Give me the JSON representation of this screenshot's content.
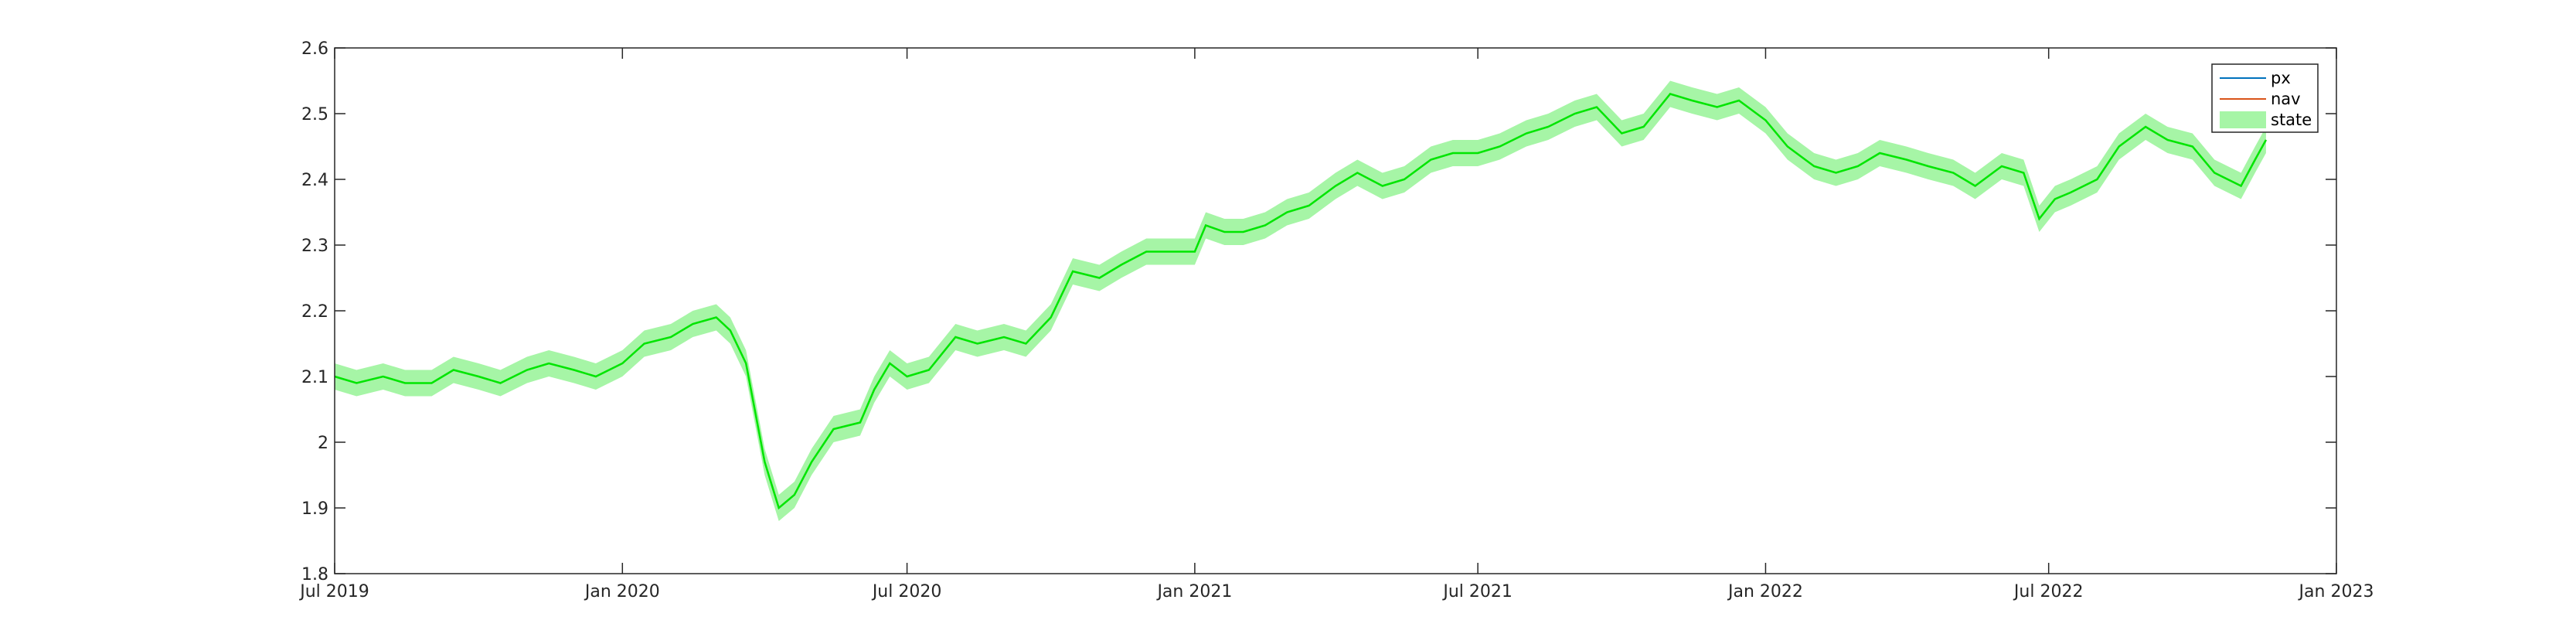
{
  "chart_data": {
    "type": "line",
    "title": "",
    "xlabel": "",
    "ylabel": "",
    "x_range": [
      "2019-07-01",
      "2023-01-01"
    ],
    "ylim": [
      1.8,
      2.6
    ],
    "xticks": [
      {
        "date": "2019-07-01",
        "label": "Jul 2019"
      },
      {
        "date": "2020-01-01",
        "label": "Jan 2020"
      },
      {
        "date": "2020-07-01",
        "label": "Jul 2020"
      },
      {
        "date": "2021-01-01",
        "label": "Jan 2021"
      },
      {
        "date": "2021-07-01",
        "label": "Jul 2021"
      },
      {
        "date": "2022-01-01",
        "label": "Jan 2022"
      },
      {
        "date": "2022-07-01",
        "label": "Jul 2022"
      },
      {
        "date": "2023-01-01",
        "label": "Jan 2023"
      }
    ],
    "yticks": [
      {
        "value": 1.8,
        "label": "1.8"
      },
      {
        "value": 1.9,
        "label": "1.9"
      },
      {
        "value": 2.0,
        "label": "2"
      },
      {
        "value": 2.1,
        "label": "2.1"
      },
      {
        "value": 2.2,
        "label": "2.2"
      },
      {
        "value": 2.3,
        "label": "2.3"
      },
      {
        "value": 2.4,
        "label": "2.4"
      },
      {
        "value": 2.5,
        "label": "2.5"
      },
      {
        "value": 2.6,
        "label": "2.6"
      }
    ],
    "grid": false,
    "legend_position": "top-right",
    "band_half_width": 0.02,
    "x": [
      "2019-07-01",
      "2019-07-15",
      "2019-08-01",
      "2019-08-15",
      "2019-09-01",
      "2019-09-15",
      "2019-10-01",
      "2019-10-15",
      "2019-11-01",
      "2019-11-15",
      "2019-12-01",
      "2019-12-15",
      "2020-01-01",
      "2020-01-15",
      "2020-02-01",
      "2020-02-15",
      "2020-03-01",
      "2020-03-10",
      "2020-03-20",
      "2020-04-01",
      "2020-04-10",
      "2020-04-20",
      "2020-05-01",
      "2020-05-15",
      "2020-06-01",
      "2020-06-10",
      "2020-06-20",
      "2020-07-01",
      "2020-07-15",
      "2020-08-01",
      "2020-08-15",
      "2020-09-01",
      "2020-09-15",
      "2020-10-01",
      "2020-10-15",
      "2020-11-01",
      "2020-11-15",
      "2020-12-01",
      "2020-12-15",
      "2021-01-01",
      "2021-01-08",
      "2021-01-20",
      "2021-02-01",
      "2021-02-15",
      "2021-03-01",
      "2021-03-15",
      "2021-04-01",
      "2021-04-15",
      "2021-05-01",
      "2021-05-15",
      "2021-06-01",
      "2021-06-15",
      "2021-07-01",
      "2021-07-15",
      "2021-08-01",
      "2021-08-15",
      "2021-09-01",
      "2021-09-15",
      "2021-10-01",
      "2021-10-15",
      "2021-11-01",
      "2021-11-15",
      "2021-12-01",
      "2021-12-15",
      "2022-01-01",
      "2022-01-15",
      "2022-02-01",
      "2022-02-15",
      "2022-03-01",
      "2022-03-15",
      "2022-04-01",
      "2022-04-15",
      "2022-05-01",
      "2022-05-15",
      "2022-06-01",
      "2022-06-15",
      "2022-06-25",
      "2022-07-05",
      "2022-07-15",
      "2022-08-01",
      "2022-08-15",
      "2022-09-01",
      "2022-09-15",
      "2022-10-01",
      "2022-10-15",
      "2022-11-01",
      "2022-11-10",
      "2022-11-17"
    ],
    "series": [
      {
        "name": "px",
        "color": "#0072BD",
        "kind": "line",
        "values": [
          2.1,
          2.09,
          2.1,
          2.09,
          2.09,
          2.11,
          2.1,
          2.09,
          2.11,
          2.12,
          2.11,
          2.1,
          2.12,
          2.15,
          2.16,
          2.18,
          2.19,
          2.17,
          2.12,
          1.97,
          1.9,
          1.92,
          1.97,
          2.02,
          2.03,
          2.08,
          2.12,
          2.1,
          2.11,
          2.16,
          2.15,
          2.16,
          2.15,
          2.19,
          2.26,
          2.25,
          2.27,
          2.29,
          2.29,
          2.29,
          2.33,
          2.32,
          2.32,
          2.33,
          2.35,
          2.36,
          2.39,
          2.41,
          2.39,
          2.4,
          2.43,
          2.44,
          2.44,
          2.45,
          2.47,
          2.48,
          2.5,
          2.51,
          2.47,
          2.48,
          2.53,
          2.52,
          2.51,
          2.52,
          2.49,
          2.45,
          2.42,
          2.41,
          2.42,
          2.44,
          2.43,
          2.42,
          2.41,
          2.39,
          2.42,
          2.41,
          2.34,
          2.37,
          2.38,
          2.4,
          2.45,
          2.48,
          2.46,
          2.45,
          2.41,
          2.39,
          2.43,
          2.46
        ]
      },
      {
        "name": "nav",
        "color": "#D95319",
        "kind": "line",
        "values": [
          2.1,
          2.09,
          2.1,
          2.09,
          2.09,
          2.11,
          2.1,
          2.09,
          2.11,
          2.12,
          2.11,
          2.1,
          2.12,
          2.15,
          2.16,
          2.18,
          2.19,
          2.17,
          2.12,
          1.97,
          1.9,
          1.92,
          1.97,
          2.02,
          2.03,
          2.08,
          2.12,
          2.1,
          2.11,
          2.16,
          2.15,
          2.16,
          2.15,
          2.19,
          2.26,
          2.25,
          2.27,
          2.29,
          2.29,
          2.29,
          2.33,
          2.32,
          2.32,
          2.33,
          2.35,
          2.36,
          2.39,
          2.41,
          2.39,
          2.4,
          2.43,
          2.44,
          2.44,
          2.45,
          2.47,
          2.48,
          2.5,
          2.51,
          2.47,
          2.48,
          2.53,
          2.52,
          2.51,
          2.52,
          2.49,
          2.45,
          2.42,
          2.41,
          2.42,
          2.44,
          2.43,
          2.42,
          2.41,
          2.39,
          2.42,
          2.41,
          2.34,
          2.37,
          2.38,
          2.4,
          2.45,
          2.48,
          2.46,
          2.45,
          2.41,
          2.39,
          2.43,
          2.46
        ]
      },
      {
        "name": "state",
        "color": "#00E600",
        "band_color": "#A6F5A6",
        "kind": "band",
        "values": [
          2.1,
          2.09,
          2.1,
          2.09,
          2.09,
          2.11,
          2.1,
          2.09,
          2.11,
          2.12,
          2.11,
          2.1,
          2.12,
          2.15,
          2.16,
          2.18,
          2.19,
          2.17,
          2.12,
          1.97,
          1.9,
          1.92,
          1.97,
          2.02,
          2.03,
          2.08,
          2.12,
          2.1,
          2.11,
          2.16,
          2.15,
          2.16,
          2.15,
          2.19,
          2.26,
          2.25,
          2.27,
          2.29,
          2.29,
          2.29,
          2.33,
          2.32,
          2.32,
          2.33,
          2.35,
          2.36,
          2.39,
          2.41,
          2.39,
          2.4,
          2.43,
          2.44,
          2.44,
          2.45,
          2.47,
          2.48,
          2.5,
          2.51,
          2.47,
          2.48,
          2.53,
          2.52,
          2.51,
          2.52,
          2.49,
          2.45,
          2.42,
          2.41,
          2.42,
          2.44,
          2.43,
          2.42,
          2.41,
          2.39,
          2.42,
          2.41,
          2.34,
          2.37,
          2.38,
          2.4,
          2.45,
          2.48,
          2.46,
          2.45,
          2.41,
          2.39,
          2.43,
          2.46
        ]
      }
    ],
    "legend": [
      "px",
      "nav",
      "state"
    ]
  }
}
